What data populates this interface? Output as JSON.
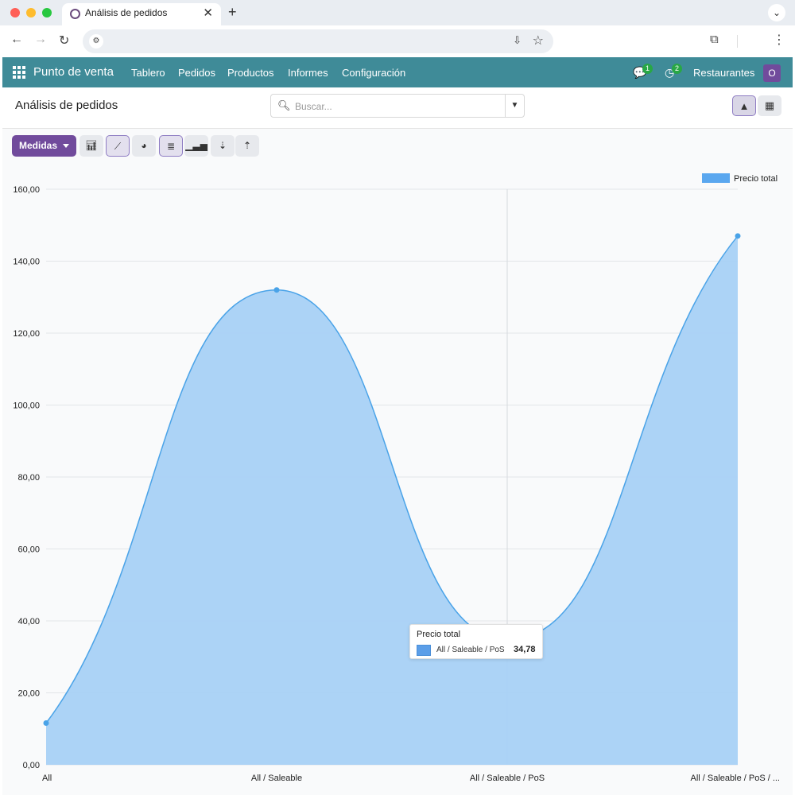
{
  "browser": {
    "tab_title": "Análisis de pedidos"
  },
  "appbar": {
    "brand": "Punto de venta",
    "menu": [
      "Tablero",
      "Pedidos",
      "Productos",
      "Informes",
      "Configuración"
    ],
    "messages_badge": "1",
    "activities_badge": "2",
    "company": "Restaurantes",
    "avatar_letter": "O"
  },
  "control": {
    "title": "Análisis de pedidos",
    "search_placeholder": "Buscar..."
  },
  "toolbar": {
    "measures_label": "Medidas"
  },
  "tooltip": {
    "title": "Precio total",
    "label": "All / Saleable / PoS",
    "value": "34,78"
  },
  "colors": {
    "appbar": "#3f8b98",
    "accent": "#714b9c",
    "series_fill": "#a8d1f5",
    "series_line": "#4aa3e8"
  },
  "chart_data": {
    "type": "area",
    "categories": [
      "All",
      "All / Saleable",
      "All / Saleable / PoS",
      "All / Saleable / PoS / ..."
    ],
    "series": [
      {
        "name": "Precio total",
        "values": [
          11.6,
          132,
          34.78,
          147
        ]
      }
    ],
    "y_ticks": [
      "0,00",
      "20,00",
      "40,00",
      "60,00",
      "80,00",
      "100,00",
      "120,00",
      "140,00",
      "160,00"
    ],
    "ylim": [
      0,
      160
    ],
    "legend": "top-right",
    "grid": true
  }
}
